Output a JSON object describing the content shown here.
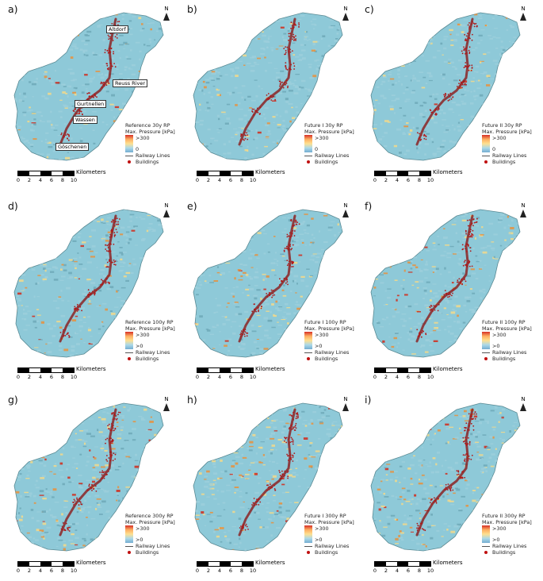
{
  "panels": [
    {
      "label": "a)",
      "title": "Reference 30y RP",
      "min_label": "0",
      "intensity": 0.3,
      "places": [
        "Altdorf",
        "Reuss River",
        "Gurtnellen",
        "Wassen",
        "Göschenen"
      ]
    },
    {
      "label": "b)",
      "title": "Future I 30y RP",
      "min_label": "0",
      "intensity": 0.35,
      "places": []
    },
    {
      "label": "c)",
      "title": "Future II 30y RP",
      "min_label": "0",
      "intensity": 0.35,
      "places": []
    },
    {
      "label": "d)",
      "title": "Reference 100y RP",
      "min_label": ">0",
      "intensity": 0.55,
      "places": []
    },
    {
      "label": "e)",
      "title": "Future I 100y RP",
      "min_label": ">0",
      "intensity": 0.5,
      "places": []
    },
    {
      "label": "f)",
      "title": "Future II 100y RP",
      "min_label": ">0",
      "intensity": 0.55,
      "places": []
    },
    {
      "label": "g)",
      "title": "Reference 300y RP",
      "min_label": ">0",
      "intensity": 0.7,
      "places": []
    },
    {
      "label": "h)",
      "title": "Future I 300y RP",
      "min_label": ">0",
      "intensity": 0.7,
      "places": []
    },
    {
      "label": "i)",
      "title": "Future II 300y RP",
      "min_label": ">0",
      "intensity": 0.7,
      "places": []
    }
  ],
  "legend": {
    "unit_label": "Max. Pressure [kPa]",
    "max_label": ">300",
    "railway_label": "Railway Lines",
    "buildings_label": "Buildings"
  },
  "north_label": "N",
  "scale": {
    "unit": "Kilometers",
    "ticks": [
      "0",
      "2",
      "4",
      "6",
      "8",
      "10"
    ]
  },
  "colors": {
    "land": "#8ec9d8",
    "low": "#9ccfdc",
    "mid": "#f3d98b",
    "high": "#e9903c",
    "max": "#d22a1a",
    "rail": "#8b1a1a",
    "outline": "#7aa"
  }
}
